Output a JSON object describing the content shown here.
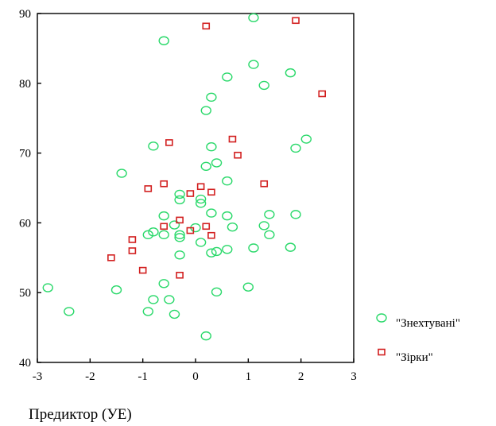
{
  "chart_data": {
    "type": "scatter",
    "title": "",
    "xlabel": "Предиктор (УЕ)",
    "ylabel": "",
    "xlim": [
      -3,
      3
    ],
    "ylim": [
      40,
      90
    ],
    "xticks": [
      "-3",
      "-2",
      "-1",
      "0",
      "1",
      "2",
      "3"
    ],
    "yticks": [
      "40",
      "50",
      "60",
      "70",
      "80",
      "90"
    ],
    "grid": false,
    "legend_position": "right-bottom",
    "series": [
      {
        "name": "\"Знехтувані\"",
        "marker": "circle",
        "color": "#2bd96b",
        "points": [
          [
            -2.8,
            50.7
          ],
          [
            -2.4,
            47.3
          ],
          [
            -1.5,
            50.4
          ],
          [
            -1.4,
            67.1
          ],
          [
            -0.9,
            58.3
          ],
          [
            -0.9,
            47.3
          ],
          [
            -0.8,
            71.0
          ],
          [
            -0.8,
            58.7
          ],
          [
            -0.8,
            49.0
          ],
          [
            -0.6,
            86.1
          ],
          [
            -0.6,
            61.0
          ],
          [
            -0.6,
            58.3
          ],
          [
            -0.6,
            51.3
          ],
          [
            -0.5,
            49.0
          ],
          [
            -0.4,
            59.7
          ],
          [
            -0.4,
            46.9
          ],
          [
            -0.3,
            64.1
          ],
          [
            -0.3,
            63.3
          ],
          [
            -0.3,
            58.3
          ],
          [
            -0.3,
            57.9
          ],
          [
            -0.3,
            55.4
          ],
          [
            0.0,
            59.3
          ],
          [
            0.1,
            63.4
          ],
          [
            0.1,
            62.8
          ],
          [
            0.1,
            57.2
          ],
          [
            0.2,
            76.1
          ],
          [
            0.2,
            68.1
          ],
          [
            0.2,
            43.8
          ],
          [
            0.3,
            78.0
          ],
          [
            0.3,
            70.9
          ],
          [
            0.3,
            61.4
          ],
          [
            0.3,
            55.7
          ],
          [
            0.4,
            68.6
          ],
          [
            0.4,
            55.9
          ],
          [
            0.4,
            50.1
          ],
          [
            0.6,
            80.9
          ],
          [
            0.6,
            66.0
          ],
          [
            0.6,
            61.0
          ],
          [
            0.6,
            56.2
          ],
          [
            0.7,
            59.4
          ],
          [
            1.0,
            50.8
          ],
          [
            1.1,
            89.4
          ],
          [
            1.1,
            82.7
          ],
          [
            1.1,
            56.4
          ],
          [
            1.3,
            59.6
          ],
          [
            1.3,
            79.7
          ],
          [
            1.4,
            61.2
          ],
          [
            1.4,
            58.3
          ],
          [
            1.8,
            81.5
          ],
          [
            1.8,
            56.5
          ],
          [
            1.9,
            70.7
          ],
          [
            1.9,
            61.2
          ],
          [
            2.1,
            72.0
          ]
        ]
      },
      {
        "name": "\"Зірки\"",
        "marker": "square",
        "color": "#d21f1f",
        "points": [
          [
            -1.6,
            55.0
          ],
          [
            -1.2,
            57.6
          ],
          [
            -1.2,
            56.0
          ],
          [
            -1.0,
            53.2
          ],
          [
            -0.9,
            64.9
          ],
          [
            -0.6,
            65.6
          ],
          [
            -0.6,
            59.5
          ],
          [
            -0.5,
            71.5
          ],
          [
            -0.3,
            60.4
          ],
          [
            -0.3,
            52.5
          ],
          [
            -0.1,
            64.2
          ],
          [
            -0.1,
            58.9
          ],
          [
            0.1,
            65.2
          ],
          [
            0.2,
            88.2
          ],
          [
            0.2,
            59.5
          ],
          [
            0.3,
            64.4
          ],
          [
            0.3,
            58.2
          ],
          [
            0.7,
            72.0
          ],
          [
            0.8,
            69.7
          ],
          [
            1.3,
            65.6
          ],
          [
            1.9,
            89.0
          ],
          [
            2.4,
            78.5
          ]
        ]
      }
    ]
  }
}
